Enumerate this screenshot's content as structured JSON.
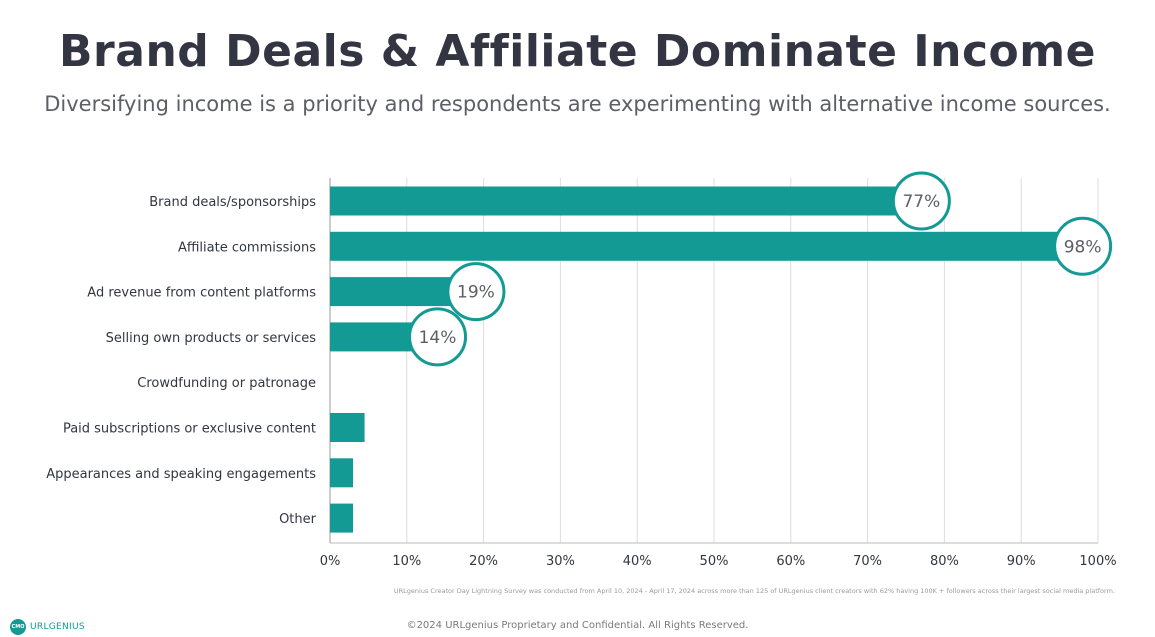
{
  "header": {
    "title": "Brand Deals & Affiliate Dominate Income",
    "subtitle": "Diversifying income is a priority and respondents are experimenting with alternative income sources."
  },
  "chart_data": {
    "type": "bar",
    "orientation": "horizontal",
    "title": "",
    "xlabel": "",
    "ylabel": "",
    "xlim": [
      0,
      100
    ],
    "grid": true,
    "bar_color": "#139a95",
    "categories": [
      "Brand deals/sponsorships",
      "Affiliate commissions",
      "Ad revenue from content platforms",
      "Selling own products or services",
      "Crowdfunding or patronage",
      "Paid subscriptions or exclusive content",
      "Appearances and speaking engagements",
      "Other"
    ],
    "values": [
      77,
      98,
      19,
      14,
      0,
      4.5,
      3,
      3
    ],
    "value_labels": [
      "77%",
      "98%",
      "19%",
      "14%",
      "",
      "",
      "",
      ""
    ],
    "tick_labels": [
      "0%",
      "10%",
      "20%",
      "30%",
      "40%",
      "50%",
      "60%",
      "70%",
      "80%",
      "90%",
      "100%"
    ]
  },
  "footer": {
    "footnote": "URLgenius Creator Day Lightning Survey was conducted from April 10, 2024 - April 17, 2024 across more than 125 of URLgenius client creators with 62% having 100K + followers across their largest social media platform.",
    "copyright": "©2024 URLgenius Proprietary and Confidential. All Rights Reserved.",
    "logo_mark": "CMO",
    "logo_text": "URLGENIUS"
  }
}
